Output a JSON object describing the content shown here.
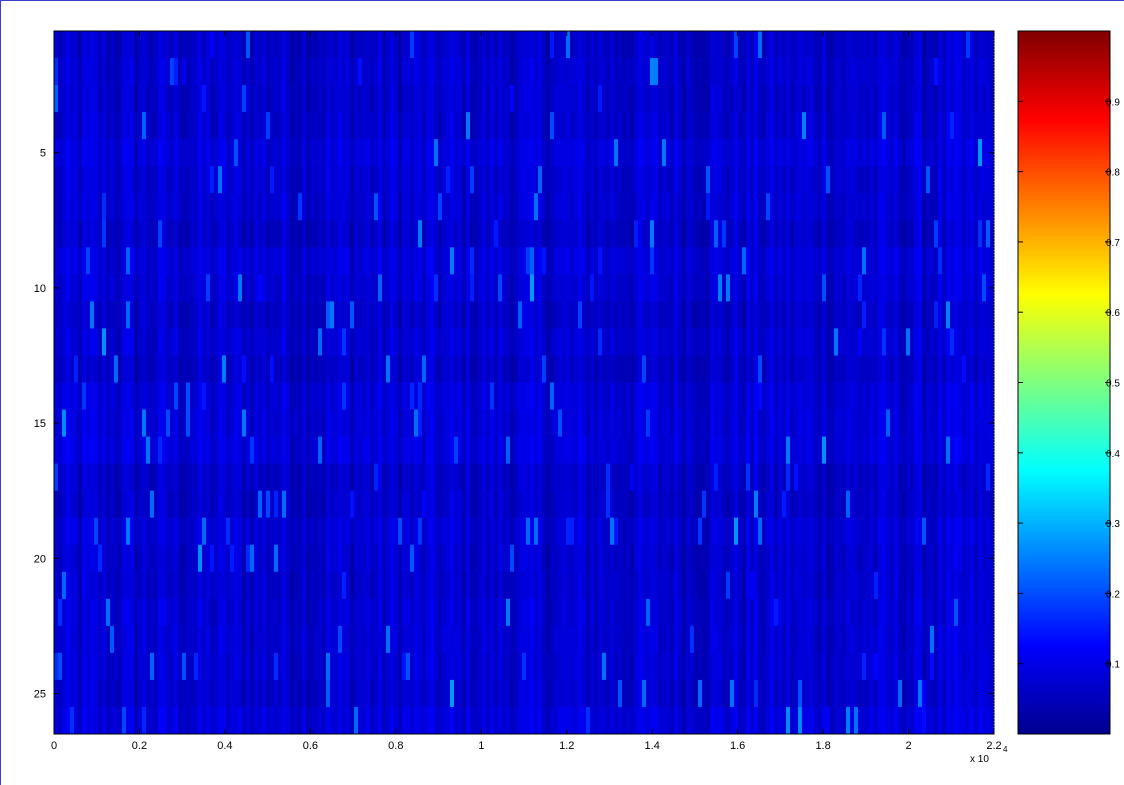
{
  "chart_data": [
    {
      "type": "heatmap",
      "title": "",
      "xlabel": "",
      "ylabel": "",
      "colormap": "jet",
      "x_range": [
        0,
        22000
      ],
      "x_scale_label": "x 10",
      "x_scale_exponent": "4",
      "x_ticks": [
        0,
        0.2,
        0.4,
        0.6,
        0.8,
        1,
        1.2,
        1.4,
        1.6,
        1.8,
        2,
        2.2
      ],
      "y_range": [
        1,
        26
      ],
      "y_reversed": true,
      "y_ticks": [
        5,
        10,
        15,
        20,
        25
      ],
      "value_range": [
        0,
        1
      ],
      "typical_value": 0.08,
      "colorbar": {
        "ticks": [
          0.1,
          0.2,
          0.3,
          0.4,
          0.5,
          0.6,
          0.7,
          0.8,
          0.9
        ],
        "placement": "right"
      }
    }
  ],
  "colors": {
    "figure_border": "#3b3bd0",
    "axes": "#000000",
    "background": "#ffffff"
  }
}
